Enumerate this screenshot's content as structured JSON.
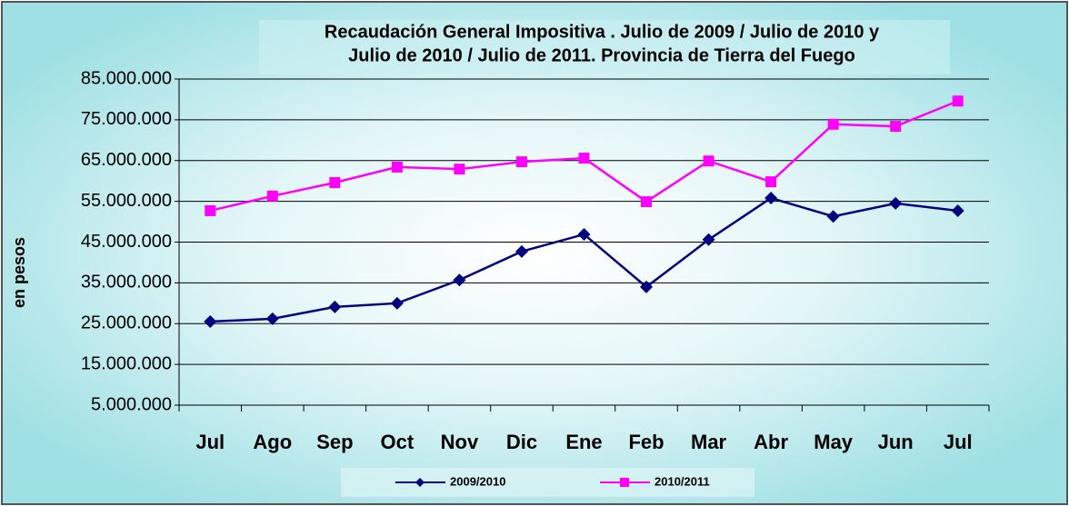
{
  "chart_data": {
    "type": "line",
    "title": [
      "Recaudación General Impositiva . Julio de 2009 / Julio de 2010  y",
      "Julio de 2010 / Julio de 2011. Provincia de Tierra del Fuego"
    ],
    "y_label": "en pesos",
    "categories": [
      "Jul",
      "Ago",
      "Sep",
      "Oct",
      "Nov",
      "Dic",
      "Ene",
      "Feb",
      "Mar",
      "Abr",
      "May",
      "Jun",
      "Jul"
    ],
    "series": [
      {
        "name": "2009/2010",
        "color": "#000080",
        "marker": "diamond",
        "values": [
          25500000,
          26200000,
          29100000,
          30000000,
          35700000,
          42700000,
          46900000,
          34000000,
          45600000,
          55800000,
          51300000,
          54500000,
          52700000
        ]
      },
      {
        "name": "2010/2011",
        "color": "#ff00ff",
        "marker": "square",
        "values": [
          52700000,
          56300000,
          59600000,
          63400000,
          62900000,
          64700000,
          65600000,
          54900000,
          64900000,
          59800000,
          73900000,
          73400000,
          79600000
        ]
      }
    ],
    "ylim": [
      5000000,
      85000000
    ],
    "yticks": [
      {
        "value": 5000000,
        "label": "5.000.000"
      },
      {
        "value": 15000000,
        "label": "15.000.000"
      },
      {
        "value": 25000000,
        "label": "25.000.000"
      },
      {
        "value": 35000000,
        "label": "35.000.000"
      },
      {
        "value": 45000000,
        "label": "45.000.000"
      },
      {
        "value": 55000000,
        "label": "55.000.000"
      },
      {
        "value": 65000000,
        "label": "65.000.000"
      },
      {
        "value": 75000000,
        "label": "75.000.000"
      },
      {
        "value": 85000000,
        "label": "85.000.000"
      }
    ],
    "grid": true,
    "legend": "bottom"
  }
}
